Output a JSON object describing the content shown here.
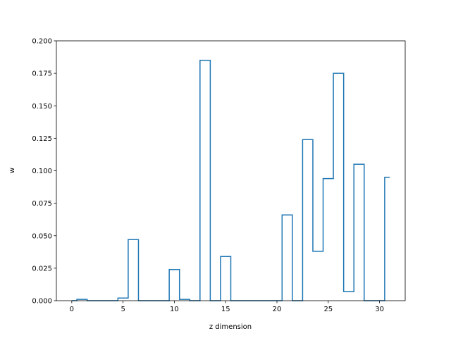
{
  "chart_data": {
    "type": "line",
    "style": "steps",
    "xlabel": "z dimension",
    "ylabel": "w",
    "xlim": [
      -1.5,
      32.5
    ],
    "ylim": [
      0,
      0.2
    ],
    "x_ticks": [
      0,
      5,
      10,
      15,
      20,
      25,
      30
    ],
    "y_ticks": [
      0.0,
      0.025,
      0.05,
      0.075,
      0.1,
      0.125,
      0.15,
      0.175,
      0.2
    ],
    "x_tick_labels": [
      "0",
      "5",
      "10",
      "15",
      "20",
      "25",
      "30"
    ],
    "y_tick_labels": [
      "0.000",
      "0.025",
      "0.050",
      "0.075",
      "0.100",
      "0.125",
      "0.150",
      "0.175",
      "0.200"
    ],
    "grid": false,
    "line_color": "#1f77b4",
    "series": [
      {
        "x": [
          0,
          1,
          2,
          3,
          4,
          5,
          6,
          7,
          8,
          9,
          10,
          11,
          12,
          13,
          14,
          15,
          16,
          17,
          18,
          19,
          20,
          21,
          22,
          23,
          24,
          25,
          26,
          27,
          28,
          29,
          30,
          31
        ],
        "values": [
          0.0,
          0.001,
          0.0,
          0.0,
          0.0,
          0.002,
          0.047,
          0.0,
          0.0,
          0.0,
          0.024,
          0.001,
          0.0,
          0.185,
          0.0,
          0.034,
          0.0,
          0.0,
          0.0,
          0.0,
          0.0,
          0.066,
          0.0,
          0.124,
          0.038,
          0.094,
          0.175,
          0.007,
          0.105,
          0.0,
          0.0,
          0.095
        ]
      }
    ]
  }
}
